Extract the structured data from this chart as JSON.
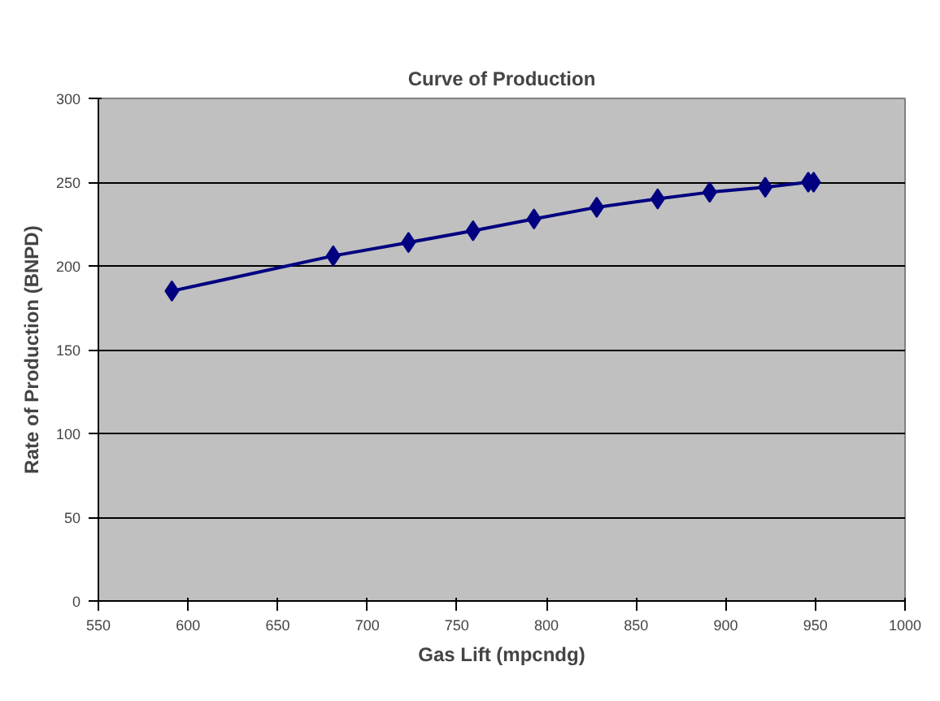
{
  "chart_data": {
    "type": "line",
    "title": "Curve of Production",
    "xlabel": "Gas Lift (mpcndg)",
    "ylabel": "Rate of Production (BNPD)",
    "x": [
      591,
      681,
      723,
      759,
      793,
      828,
      862,
      891,
      922,
      946,
      949
    ],
    "series": [
      {
        "color": "#000080",
        "values": [
          185,
          206,
          214,
          221,
          228,
          235,
          240,
          244,
          247,
          250,
          250
        ]
      }
    ],
    "xlim": [
      550,
      1000
    ],
    "xticks": [
      550,
      600,
      650,
      700,
      750,
      800,
      850,
      900,
      950,
      1000
    ],
    "ylim": [
      0,
      300
    ],
    "yticks": [
      0,
      50,
      100,
      150,
      200,
      250,
      300
    ],
    "grid": "y",
    "marker": "diamond",
    "line_style": "solid"
  }
}
